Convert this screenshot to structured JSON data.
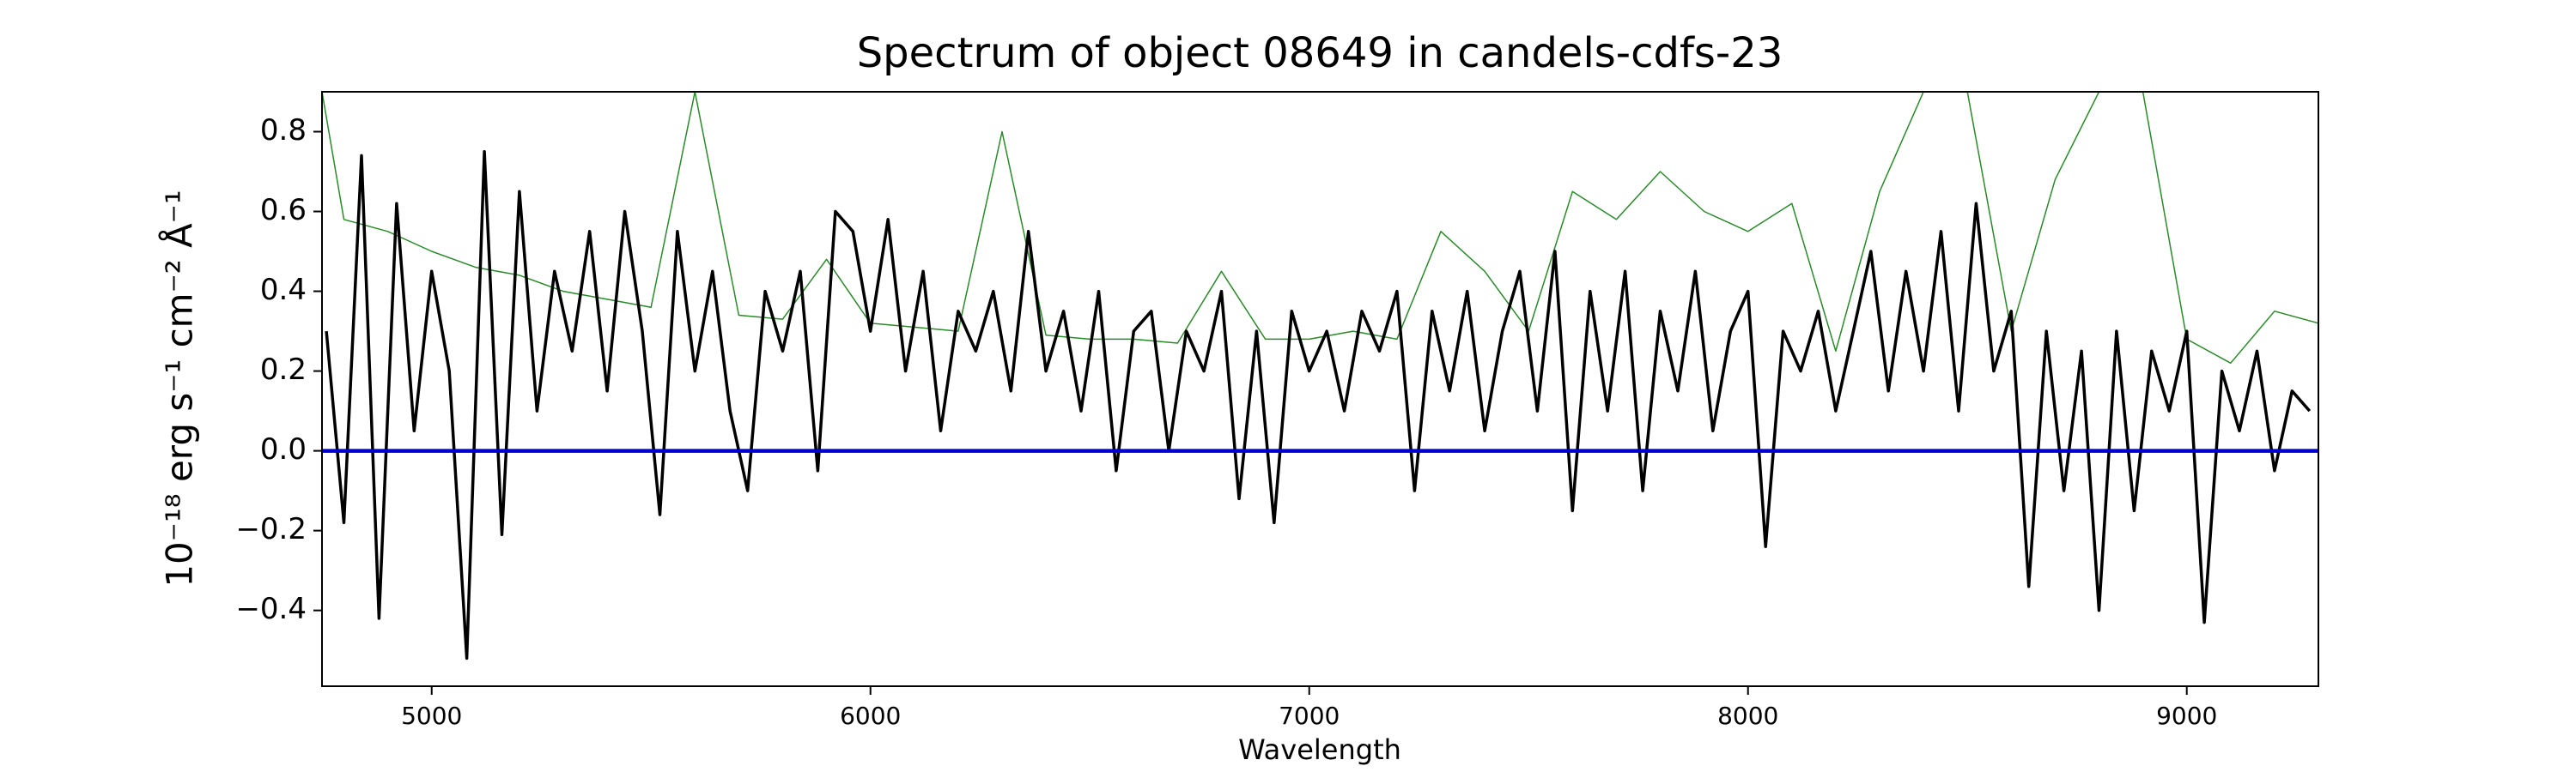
{
  "chart_data": {
    "type": "line",
    "title": "Spectrum of object 08649 in candels-cdfs-23",
    "xlabel": "Wavelength",
    "ylabel": "10⁻¹⁸ erg s⁻¹ cm⁻² Å⁻¹",
    "xlim": [
      4750,
      9300
    ],
    "ylim": [
      -0.59,
      0.9
    ],
    "xticks": [
      5000,
      6000,
      7000,
      8000,
      9000
    ],
    "yticks": [
      {
        "value": -0.4,
        "label": "−0.4"
      },
      {
        "value": -0.2,
        "label": "−0.2"
      },
      {
        "value": 0,
        "label": "0.0"
      },
      0.2,
      0.4,
      0.6,
      0.8
    ],
    "series": [
      {
        "color": "#2a8a2a",
        "x": [
          4750,
          4800,
          4900,
          5000,
          5100,
          5200,
          5300,
          5400,
          5500,
          5600,
          5700,
          5800,
          5900,
          6000,
          6100,
          6200,
          6300,
          6400,
          6500,
          6600,
          6700,
          6800,
          6900,
          7000,
          7100,
          7200,
          7300,
          7400,
          7500,
          7600,
          7700,
          7800,
          7900,
          8000,
          8100,
          8200,
          8300,
          8400,
          8500,
          8600,
          8700,
          8800,
          8900,
          9000,
          9100,
          9200,
          9300
        ],
        "values": [
          0.9,
          0.58,
          0.55,
          0.5,
          0.46,
          0.44,
          0.4,
          0.38,
          0.36,
          0.9,
          0.34,
          0.33,
          0.48,
          0.32,
          0.31,
          0.3,
          0.8,
          0.29,
          0.28,
          0.28,
          0.27,
          0.45,
          0.28,
          0.28,
          0.3,
          0.28,
          0.55,
          0.45,
          0.3,
          0.65,
          0.58,
          0.7,
          0.6,
          0.55,
          0.62,
          0.25,
          0.65,
          0.9,
          0.9,
          0.3,
          0.68,
          0.9,
          0.9,
          0.28,
          0.22,
          0.35,
          0.32
        ]
      },
      {
        "color": "#000000",
        "x": [
          4760,
          4800,
          4840,
          4880,
          4920,
          4960,
          5000,
          5040,
          5080,
          5120,
          5160,
          5200,
          5240,
          5280,
          5320,
          5360,
          5400,
          5440,
          5480,
          5520,
          5560,
          5600,
          5640,
          5680,
          5720,
          5760,
          5800,
          5840,
          5880,
          5920,
          5960,
          6000,
          6040,
          6080,
          6120,
          6160,
          6200,
          6240,
          6280,
          6320,
          6360,
          6400,
          6440,
          6480,
          6520,
          6560,
          6600,
          6640,
          6680,
          6720,
          6760,
          6800,
          6840,
          6880,
          6920,
          6960,
          7000,
          7040,
          7080,
          7120,
          7160,
          7200,
          7240,
          7280,
          7320,
          7360,
          7400,
          7440,
          7480,
          7520,
          7560,
          7600,
          7640,
          7680,
          7720,
          7760,
          7800,
          7840,
          7880,
          7920,
          7960,
          8000,
          8040,
          8080,
          8120,
          8160,
          8200,
          8240,
          8280,
          8320,
          8360,
          8400,
          8440,
          8480,
          8520,
          8560,
          8600,
          8640,
          8680,
          8720,
          8760,
          8800,
          8840,
          8880,
          8920,
          8960,
          9000,
          9040,
          9080,
          9120,
          9160,
          9200,
          9240,
          9280
        ],
        "values": [
          0.3,
          -0.18,
          0.74,
          -0.42,
          0.62,
          0.05,
          0.45,
          0.2,
          -0.52,
          0.75,
          -0.21,
          0.65,
          0.1,
          0.45,
          0.25,
          0.55,
          0.15,
          0.6,
          0.3,
          -0.16,
          0.55,
          0.2,
          0.45,
          0.1,
          -0.1,
          0.4,
          0.25,
          0.45,
          -0.05,
          0.6,
          0.55,
          0.3,
          0.58,
          0.2,
          0.45,
          0.05,
          0.35,
          0.25,
          0.4,
          0.15,
          0.55,
          0.2,
          0.35,
          0.1,
          0.4,
          -0.05,
          0.3,
          0.35,
          0.0,
          0.3,
          0.2,
          0.4,
          -0.12,
          0.3,
          -0.18,
          0.35,
          0.2,
          0.3,
          0.1,
          0.35,
          0.25,
          0.4,
          -0.1,
          0.35,
          0.15,
          0.4,
          0.05,
          0.3,
          0.45,
          0.1,
          0.5,
          -0.15,
          0.4,
          0.1,
          0.45,
          -0.1,
          0.35,
          0.15,
          0.45,
          0.05,
          0.3,
          0.4,
          -0.24,
          0.3,
          0.2,
          0.35,
          0.1,
          0.3,
          0.5,
          0.15,
          0.45,
          0.2,
          0.55,
          0.1,
          0.62,
          0.2,
          0.35,
          -0.34,
          0.3,
          -0.1,
          0.25,
          -0.4,
          0.3,
          -0.15,
          0.25,
          0.1,
          0.3,
          -0.43,
          0.2,
          0.05,
          0.25,
          -0.05,
          0.15,
          0.1
        ]
      },
      {
        "color": "#0000cc",
        "x": [
          4750,
          9300
        ],
        "values": [
          0,
          0
        ]
      }
    ]
  }
}
